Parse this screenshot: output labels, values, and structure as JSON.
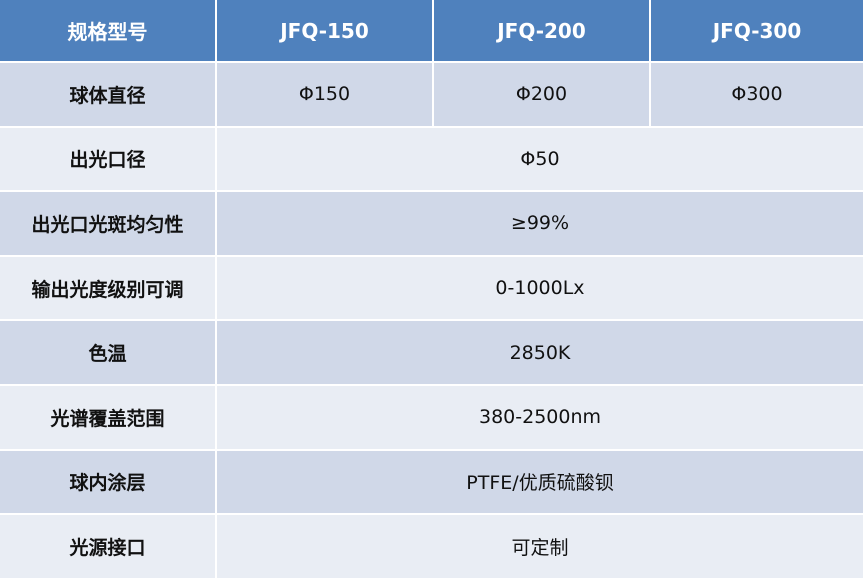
{
  "table": {
    "header": [
      "规格型号",
      "JFQ-150",
      "JFQ-200",
      "JFQ-300"
    ],
    "rows": [
      [
        "球体直径",
        "Φ150",
        "Φ200",
        "Φ300"
      ],
      [
        "出光口径",
        "Φ50"
      ],
      [
        "出光口光斑均匀性",
        "≥99%"
      ],
      [
        "输出光度级别可调",
        "0-1000Lx"
      ],
      [
        "色温",
        "2850K"
      ],
      [
        "光谱覆盖范围",
        "380-2500nm"
      ],
      [
        "球内涂层",
        "PTFE/优质硫酸钡"
      ],
      [
        "光源接口",
        "可定制"
      ]
    ]
  }
}
